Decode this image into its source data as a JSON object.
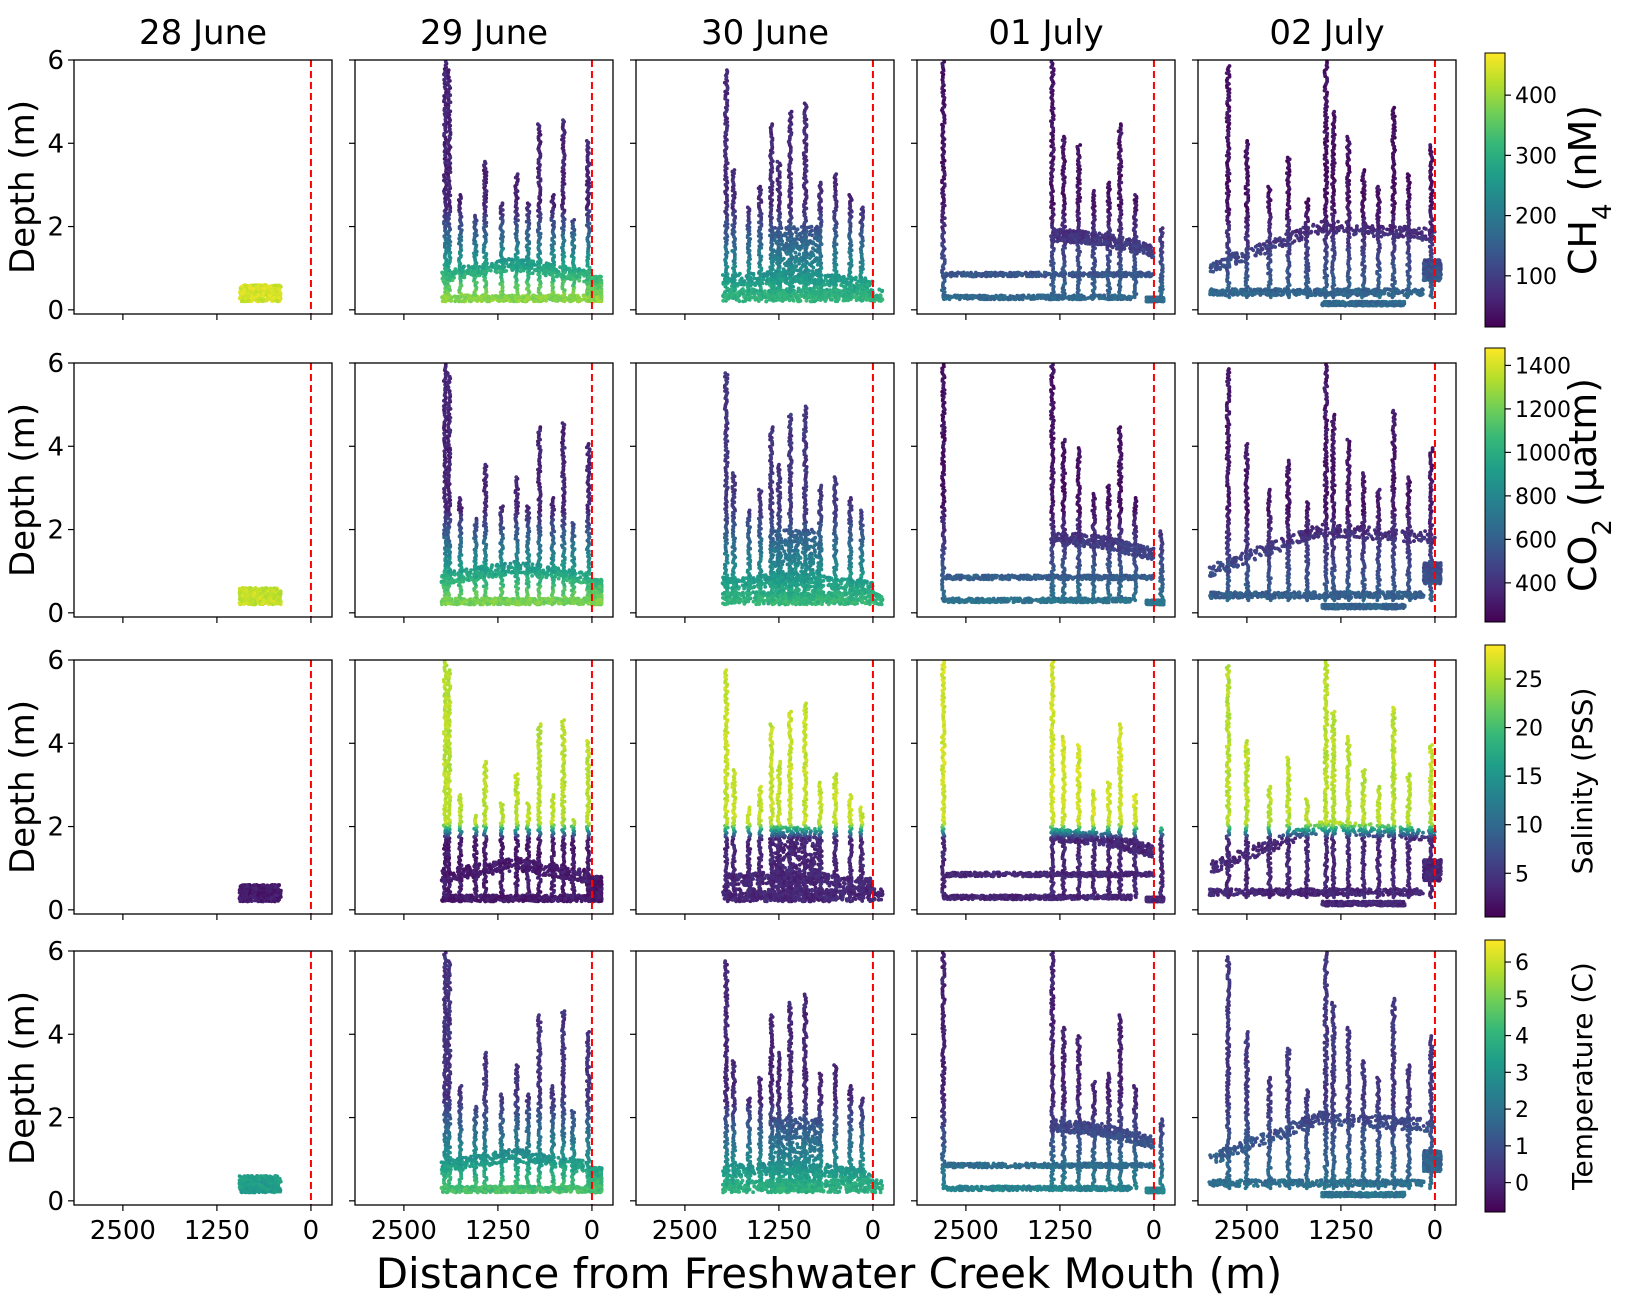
{
  "figure": {
    "xlabel": "Distance from Freshwater Creek Mouth (m)",
    "columns": [
      "28 June",
      "29 June",
      "30 June",
      "01 July",
      "02 July"
    ],
    "ylabel": "Depth (m)",
    "y_ticks": [
      "0",
      "2",
      "4",
      "6"
    ],
    "x_ticks": [
      "2500",
      "1250",
      "0"
    ],
    "reference_line": {
      "distance_m": 0,
      "color": "#ff0000",
      "style": "dashed"
    }
  },
  "colorbars": [
    {
      "name": "ch4",
      "label_main": "CH",
      "label_sub": "4",
      "label_tail": " (nM)",
      "ticks": [
        "100",
        "200",
        "300",
        "400"
      ],
      "tick_values": [
        100,
        200,
        300,
        400
      ],
      "range": [
        15,
        470
      ]
    },
    {
      "name": "co2",
      "label_main": "CO",
      "label_sub": "2",
      "label_tail": " (μatm)",
      "ticks": [
        "400",
        "600",
        "800",
        "1000",
        "1200",
        "1400"
      ],
      "tick_values": [
        400,
        600,
        800,
        1000,
        1200,
        1400
      ],
      "range": [
        220,
        1480
      ]
    },
    {
      "name": "salinity",
      "label_main": "Salinity (PSS)",
      "label_sub": "",
      "label_tail": "",
      "ticks": [
        "5",
        "10",
        "15",
        "20",
        "25"
      ],
      "tick_values": [
        5,
        10,
        15,
        20,
        25
      ],
      "range": [
        0.5,
        28.5
      ]
    },
    {
      "name": "temperature",
      "label_main": "Temperature (C)",
      "label_sub": "",
      "label_tail": "",
      "ticks": [
        "0",
        "1",
        "2",
        "3",
        "4",
        "5",
        "6"
      ],
      "tick_values": [
        0,
        1,
        2,
        3,
        4,
        5,
        6
      ],
      "range": [
        -0.8,
        6.6
      ]
    }
  ],
  "colormap": {
    "name": "viridis",
    "stops": [
      "#440154",
      "#482878",
      "#3e4989",
      "#31688e",
      "#26828e",
      "#1f9e89",
      "#35b779",
      "#6ece58",
      "#b5de2b",
      "#fde725"
    ]
  },
  "chart_data": {
    "type": "scatter",
    "x_axis": {
      "label": "Distance from Freshwater Creek Mouth (m)",
      "lim": [
        3150,
        -280
      ],
      "ticks": [
        2500,
        1250,
        0
      ],
      "inverted": true
    },
    "y_axis": {
      "label": "Depth (m)",
      "lim": [
        6,
        -0.1
      ],
      "ticks": [
        0,
        2,
        4,
        6
      ],
      "inverted": true
    },
    "rows": [
      "CH4 (nM)",
      "CO2 (μatm)",
      "Salinity (PSS)",
      "Temperature (C)"
    ],
    "columns": [
      "28 June",
      "29 June",
      "30 June",
      "01 July",
      "02 July"
    ],
    "surveys": [
      {
        "date": "28 June",
        "near_surface": [
          {
            "from_m": 950,
            "to_m": 400,
            "top_m": 0.2,
            "bottom_m": 0.6
          }
        ],
        "layers": [],
        "profiles": [],
        "row_values": {
          "ch4": {
            "surface": 440,
            "deep": 440
          },
          "co2": {
            "surface": 1370,
            "deep": 1370
          },
          "salinity": {
            "surface": 1.5,
            "deep": 1.5
          },
          "temperature": {
            "surface": 3.3,
            "deep": 3.3
          }
        }
      },
      {
        "date": "29 June",
        "near_surface": [
          {
            "from_m": 2000,
            "to_m": -130,
            "top_m": 0.2,
            "bottom_m": 0.35
          },
          {
            "from_m": 50,
            "to_m": -130,
            "top_m": 0.2,
            "bottom_m": 0.8
          }
        ],
        "layers": [
          {
            "from_m": 2000,
            "to_m": 50,
            "depth_start_m": 0.8,
            "depth_mid_m": 1.1,
            "depth_end_m": 0.8
          }
        ],
        "profiles": [
          {
            "distance_m": 1950,
            "max_depth_m": 6.0
          },
          {
            "distance_m": 1900,
            "max_depth_m": 5.8
          },
          {
            "distance_m": 1750,
            "max_depth_m": 2.8
          },
          {
            "distance_m": 1550,
            "max_depth_m": 2.3
          },
          {
            "distance_m": 1420,
            "max_depth_m": 3.6
          },
          {
            "distance_m": 1200,
            "max_depth_m": 2.6
          },
          {
            "distance_m": 1000,
            "max_depth_m": 3.3
          },
          {
            "distance_m": 850,
            "max_depth_m": 2.6
          },
          {
            "distance_m": 700,
            "max_depth_m": 4.5
          },
          {
            "distance_m": 520,
            "max_depth_m": 2.8
          },
          {
            "distance_m": 380,
            "max_depth_m": 4.6
          },
          {
            "distance_m": 250,
            "max_depth_m": 2.2
          },
          {
            "distance_m": 50,
            "max_depth_m": 4.1
          }
        ],
        "row_values": {
          "ch4": {
            "surface": 390,
            "deep": 60
          },
          "co2": {
            "surface": 1220,
            "deep": 350
          },
          "salinity": {
            "surface": 1.5,
            "deep": 26.5
          },
          "temperature": {
            "surface": 4.4,
            "deep": 0.3
          }
        }
      },
      {
        "date": "30 June",
        "near_surface": [
          {
            "from_m": 2000,
            "to_m": -130,
            "top_m": 0.2,
            "bottom_m": 0.5
          },
          {
            "from_m": 1350,
            "to_m": 700,
            "top_m": 0.2,
            "bottom_m": 2.0
          }
        ],
        "layers": [
          {
            "from_m": 2000,
            "to_m": 0,
            "depth_start_m": 0.7,
            "depth_mid_m": 0.8,
            "depth_end_m": 0.6
          }
        ],
        "profiles": [
          {
            "distance_m": 1950,
            "max_depth_m": 5.8
          },
          {
            "distance_m": 1850,
            "max_depth_m": 3.4
          },
          {
            "distance_m": 1650,
            "max_depth_m": 2.5
          },
          {
            "distance_m": 1500,
            "max_depth_m": 3.0
          },
          {
            "distance_m": 1350,
            "max_depth_m": 4.5
          },
          {
            "distance_m": 1250,
            "max_depth_m": 3.6
          },
          {
            "distance_m": 1100,
            "max_depth_m": 4.8
          },
          {
            "distance_m": 900,
            "max_depth_m": 5.0
          },
          {
            "distance_m": 700,
            "max_depth_m": 3.1
          },
          {
            "distance_m": 500,
            "max_depth_m": 3.3
          },
          {
            "distance_m": 300,
            "max_depth_m": 2.8
          },
          {
            "distance_m": 150,
            "max_depth_m": 2.5
          }
        ],
        "row_values": {
          "ch4": {
            "surface": 310,
            "deep": 70
          },
          "co2": {
            "surface": 1050,
            "deep": 420
          },
          "salinity": {
            "surface": 2.5,
            "deep": 27
          },
          "temperature": {
            "surface": 3.9,
            "deep": 0.0
          }
        }
      },
      {
        "date": "01 July",
        "near_surface": [
          {
            "from_m": 2800,
            "to_m": 300,
            "top_m": 0.25,
            "bottom_m": 0.35
          },
          {
            "from_m": 2800,
            "to_m": 0,
            "top_m": 0.8,
            "bottom_m": 0.9
          },
          {
            "from_m": 100,
            "to_m": -130,
            "top_m": 0.2,
            "bottom_m": 0.3
          }
        ],
        "layers": [
          {
            "from_m": 1350,
            "to_m": 0,
            "depth_start_m": 1.8,
            "depth_mid_m": 1.7,
            "depth_end_m": 1.4
          }
        ],
        "profiles": [
          {
            "distance_m": 2800,
            "max_depth_m": 6.0
          },
          {
            "distance_m": 1350,
            "max_depth_m": 6.0
          },
          {
            "distance_m": 1200,
            "max_depth_m": 4.2
          },
          {
            "distance_m": 1000,
            "max_depth_m": 4.0
          },
          {
            "distance_m": 800,
            "max_depth_m": 2.9
          },
          {
            "distance_m": 600,
            "max_depth_m": 3.1
          },
          {
            "distance_m": 450,
            "max_depth_m": 4.5
          },
          {
            "distance_m": 250,
            "max_depth_m": 2.8
          },
          {
            "distance_m": -100,
            "max_depth_m": 2.0
          }
        ],
        "row_values": {
          "ch4": {
            "surface": 170,
            "deep": 40
          },
          "co2": {
            "surface": 700,
            "deep": 280
          },
          "salinity": {
            "surface": 2.5,
            "deep": 27.5
          },
          "temperature": {
            "surface": 2.5,
            "deep": -0.1
          }
        }
      },
      {
        "date": "02 July",
        "near_surface": [
          {
            "from_m": 3000,
            "to_m": 150,
            "top_m": 0.35,
            "bottom_m": 0.5
          },
          {
            "from_m": 1500,
            "to_m": 400,
            "top_m": 0.1,
            "bottom_m": 0.2
          },
          {
            "from_m": 150,
            "to_m": -80,
            "top_m": 0.7,
            "bottom_m": 1.2
          }
        ],
        "layers": [
          {
            "from_m": 3000,
            "to_m": 0,
            "depth_start_m": 1.0,
            "depth_mid_m": 2.0,
            "depth_end_m": 1.8
          }
        ],
        "profiles": [
          {
            "distance_m": 2750,
            "max_depth_m": 5.9
          },
          {
            "distance_m": 2500,
            "max_depth_m": 4.1
          },
          {
            "distance_m": 2200,
            "max_depth_m": 3.0
          },
          {
            "distance_m": 1950,
            "max_depth_m": 3.7
          },
          {
            "distance_m": 1700,
            "max_depth_m": 2.7
          },
          {
            "distance_m": 1450,
            "max_depth_m": 6.0
          },
          {
            "distance_m": 1350,
            "max_depth_m": 4.8
          },
          {
            "distance_m": 1150,
            "max_depth_m": 4.2
          },
          {
            "distance_m": 950,
            "max_depth_m": 3.4
          },
          {
            "distance_m": 750,
            "max_depth_m": 3.0
          },
          {
            "distance_m": 550,
            "max_depth_m": 4.9
          },
          {
            "distance_m": 350,
            "max_depth_m": 3.3
          },
          {
            "distance_m": 50,
            "max_depth_m": 4.0
          }
        ],
        "row_values": {
          "ch4": {
            "surface": 170,
            "deep": 35
          },
          "co2": {
            "surface": 620,
            "deep": 300
          },
          "salinity": {
            "surface": 2.5,
            "deep": 26.5
          },
          "temperature": {
            "surface": 2.0,
            "deep": 0.4
          }
        }
      }
    ]
  }
}
